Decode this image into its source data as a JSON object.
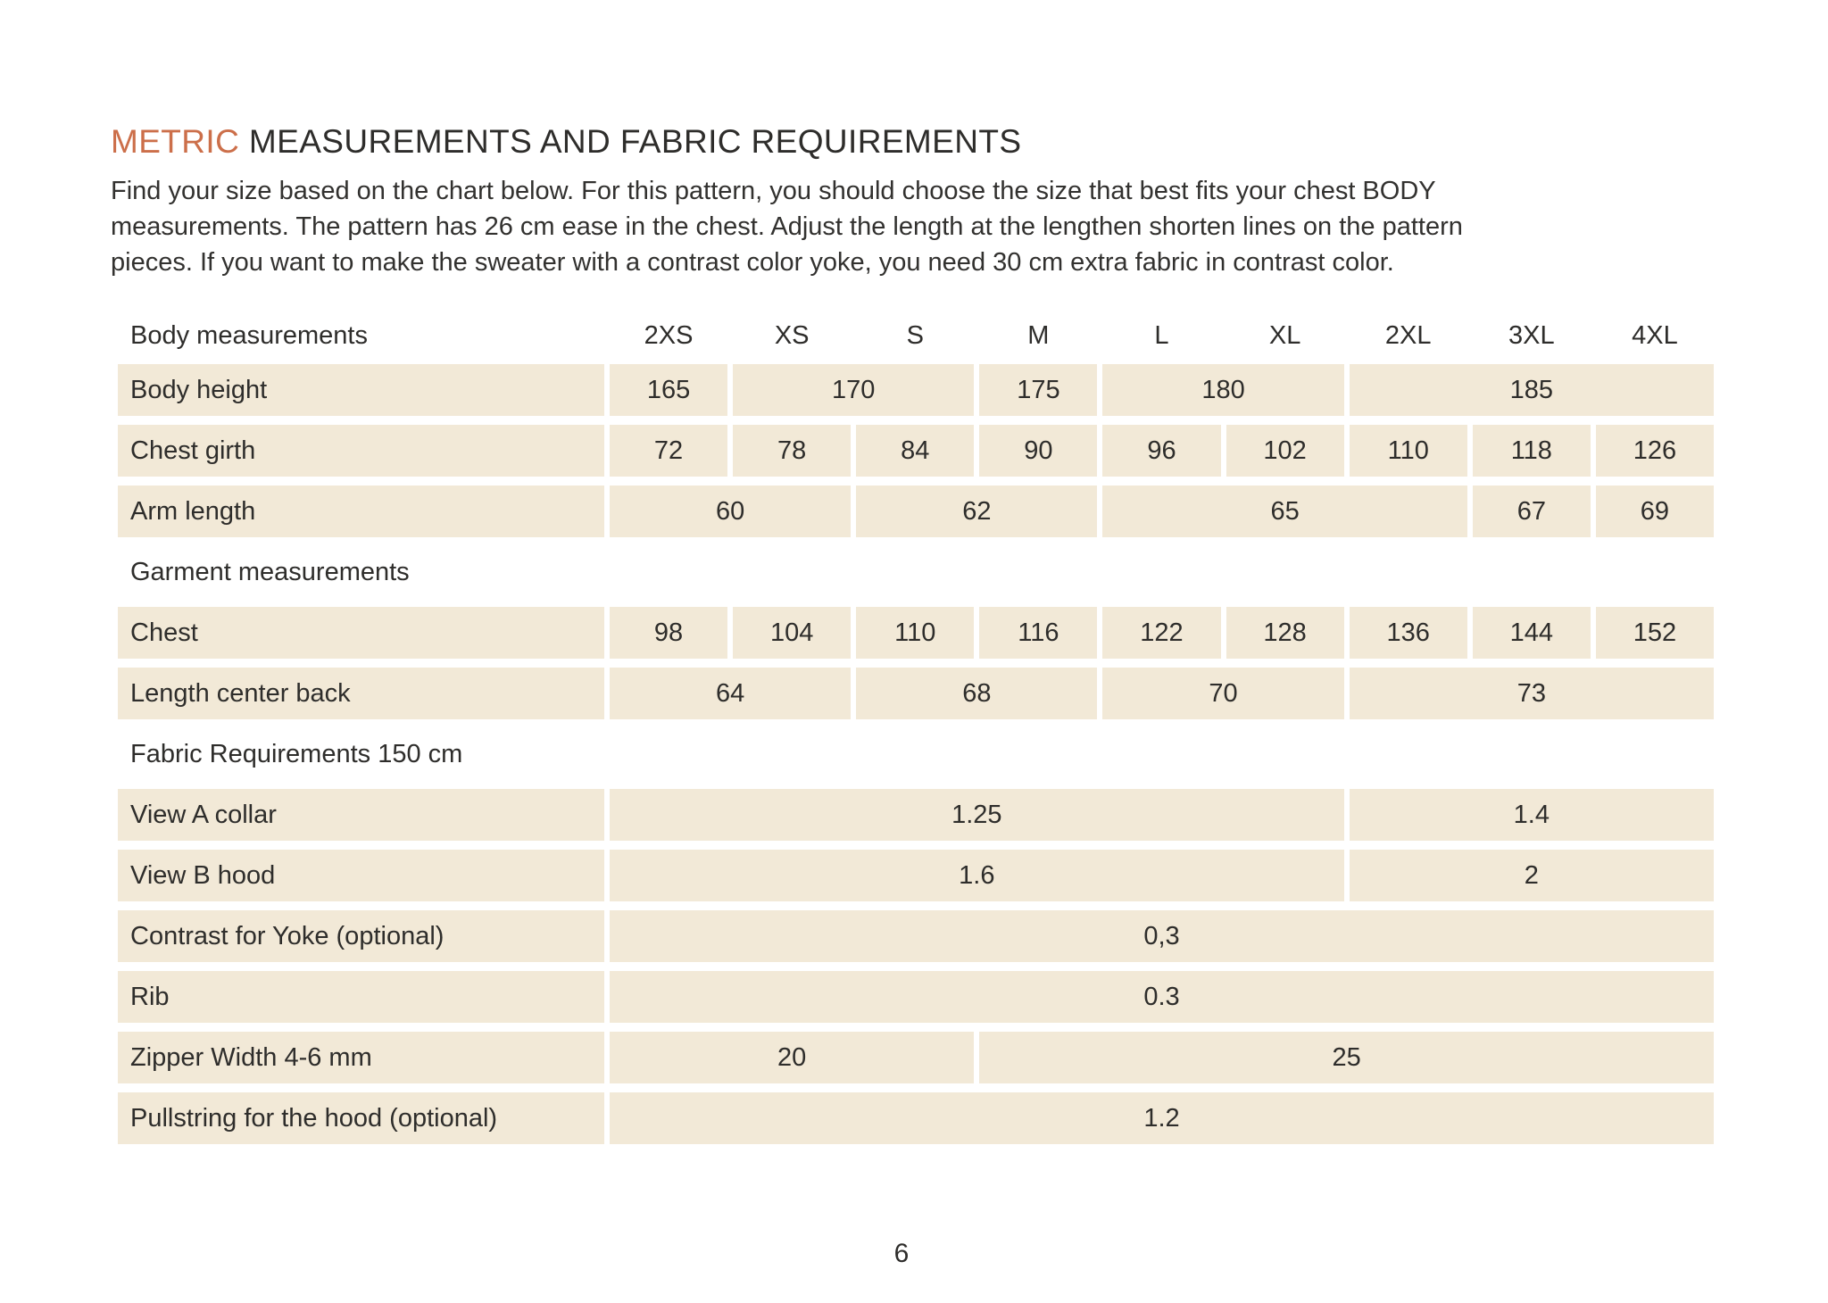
{
  "header": {
    "title_accent": "METRIC",
    "title_rest": " MEASUREMENTS AND FABRIC REQUIREMENTS"
  },
  "intro": {
    "lines": [
      "Find your size based on the chart below. For this pattern, you should choose the size that best fits your chest BODY",
      "measurements. The pattern has 26 cm ease in the chest. Adjust the length at the lengthen shorten lines on the pattern",
      "pieces. If you want to make the sweater with a contrast color yoke, you need 30 cm extra fabric in contrast color."
    ]
  },
  "table": {
    "header_label": "Body measurements",
    "size_columns": [
      "2XS",
      "XS",
      "S",
      "M",
      "L",
      "XL",
      "2XL",
      "3XL",
      "4XL"
    ],
    "rows": [
      {
        "type": "data",
        "label": "Body height",
        "cells": [
          {
            "value": "165",
            "span": 1
          },
          {
            "value": "170",
            "span": 2
          },
          {
            "value": "175",
            "span": 1
          },
          {
            "value": "180",
            "span": 2
          },
          {
            "value": "185",
            "span": 3
          }
        ]
      },
      {
        "type": "data",
        "label": "Chest girth",
        "cells": [
          {
            "value": "72",
            "span": 1
          },
          {
            "value": "78",
            "span": 1
          },
          {
            "value": "84",
            "span": 1
          },
          {
            "value": "90",
            "span": 1
          },
          {
            "value": "96",
            "span": 1
          },
          {
            "value": "102",
            "span": 1
          },
          {
            "value": "110",
            "span": 1
          },
          {
            "value": "118",
            "span": 1
          },
          {
            "value": "126",
            "span": 1
          }
        ]
      },
      {
        "type": "data",
        "label": "Arm length",
        "cells": [
          {
            "value": "60",
            "span": 2
          },
          {
            "value": "62",
            "span": 2
          },
          {
            "value": "65",
            "span": 3
          },
          {
            "value": "67",
            "span": 1
          },
          {
            "value": "69",
            "span": 1
          }
        ]
      },
      {
        "type": "section",
        "label": "Garment measurements"
      },
      {
        "type": "data",
        "label": "Chest",
        "cells": [
          {
            "value": "98",
            "span": 1
          },
          {
            "value": "104",
            "span": 1
          },
          {
            "value": "110",
            "span": 1
          },
          {
            "value": "116",
            "span": 1
          },
          {
            "value": "122",
            "span": 1
          },
          {
            "value": "128",
            "span": 1
          },
          {
            "value": "136",
            "span": 1
          },
          {
            "value": "144",
            "span": 1
          },
          {
            "value": "152",
            "span": 1
          }
        ]
      },
      {
        "type": "data",
        "label": "Length center back",
        "cells": [
          {
            "value": "64",
            "span": 2
          },
          {
            "value": "68",
            "span": 2
          },
          {
            "value": "70",
            "span": 2
          },
          {
            "value": "73",
            "span": 3
          }
        ]
      },
      {
        "type": "section",
        "label": "Fabric Requirements 150 cm"
      },
      {
        "type": "data",
        "label": "View A collar",
        "cells": [
          {
            "value": "1.25",
            "span": 6
          },
          {
            "value": "1.4",
            "span": 3
          }
        ]
      },
      {
        "type": "data",
        "label": "View B hood",
        "cells": [
          {
            "value": "1.6",
            "span": 6
          },
          {
            "value": "2",
            "span": 3
          }
        ]
      },
      {
        "type": "data",
        "label": "Contrast for Yoke (optional)",
        "cells": [
          {
            "value": "0,3",
            "span": 9
          }
        ]
      },
      {
        "type": "data",
        "label": "Rib",
        "cells": [
          {
            "value": "0.3",
            "span": 9
          }
        ]
      },
      {
        "type": "data",
        "label": "Zipper Width 4-6 mm",
        "cells": [
          {
            "value": "20",
            "span": 3
          },
          {
            "value": "25",
            "span": 6
          }
        ]
      },
      {
        "type": "data",
        "label": "Pullstring for the hood (optional)",
        "cells": [
          {
            "value": "1.2",
            "span": 9
          }
        ]
      }
    ]
  },
  "footer": {
    "page_number": "6"
  },
  "colors": {
    "accent_orange": "#cc6f4a",
    "cell_beige": "#f2e9d7",
    "text_dark": "#2e2d2b",
    "page_background": "#ffffff"
  }
}
